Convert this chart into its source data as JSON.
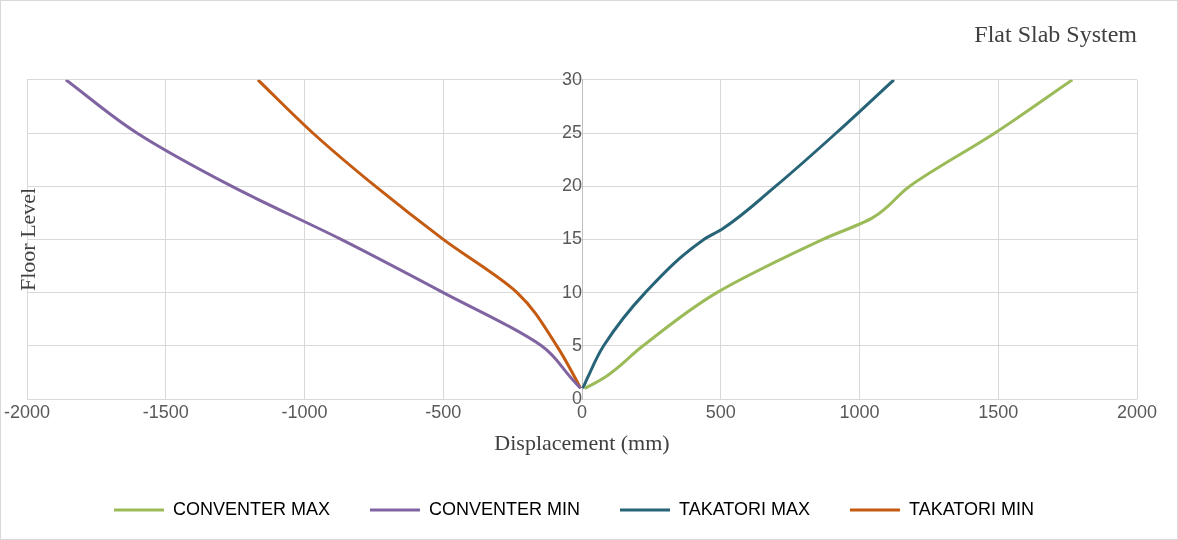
{
  "chart_data": {
    "type": "line",
    "title": "Flat Slab System",
    "xlabel": "Displacement (mm)",
    "ylabel": "Floor Level",
    "xlim": [
      -2000,
      2000
    ],
    "xticks": [
      -2000,
      -1500,
      -1000,
      -500,
      0,
      500,
      1000,
      1500,
      2000
    ],
    "ylim": [
      0,
      30
    ],
    "yticks": [
      {
        "value": 0,
        "label": "0"
      },
      {
        "value": 5,
        "label": "5"
      },
      {
        "value": 10,
        "label": "10"
      },
      {
        "value": 15,
        "label": "15"
      },
      {
        "value": 20,
        "label": "20"
      },
      {
        "value": 25,
        "label": "25"
      },
      {
        "value": 30,
        "label": "30"
      }
    ],
    "grid": true,
    "legend": "bottom",
    "marker": "none",
    "line_style": "solid",
    "series": [
      {
        "name": "CONVENTER MAX",
        "color": "#9bbb59",
        "x": [
          10,
          80,
          220,
          486,
          868,
          1045,
          1181,
          1488,
          1767
        ],
        "values": [
          1,
          2,
          5,
          10,
          15,
          17,
          20,
          25,
          30
        ]
      },
      {
        "name": "CONVENTER MIN",
        "color": "#8064a2",
        "x": [
          -5,
          -40,
          -146,
          -500,
          -868,
          -1263,
          -1604,
          -1860
        ],
        "values": [
          1,
          2,
          5,
          10,
          15,
          20,
          25,
          30
        ]
      },
      {
        "name": "TAKATORI MAX",
        "color": "#276477",
        "x": [
          3,
          20,
          78,
          228,
          439,
          507,
          698,
          916,
          1124
        ],
        "values": [
          1,
          2,
          5,
          10,
          15,
          16,
          20,
          25,
          30
        ]
      },
      {
        "name": "TAKATORI MIN",
        "color": "#c55a11",
        "x": [
          -5,
          -25,
          -91,
          -234,
          -500,
          -745,
          -970,
          -1168
        ],
        "values": [
          1,
          2,
          5,
          10,
          15,
          20,
          25,
          30
        ]
      }
    ]
  }
}
